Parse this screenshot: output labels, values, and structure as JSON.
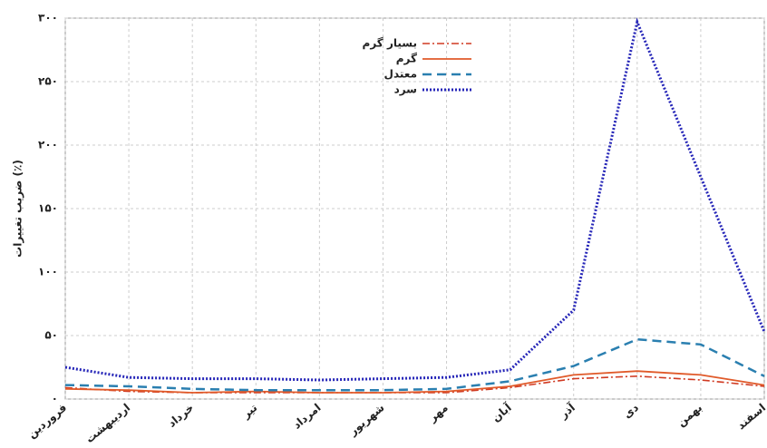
{
  "chart_data": {
    "type": "line",
    "y_label": "ضریب تغییرات (٪)",
    "categories": [
      "فروردین",
      "اردیبهشت",
      "خرداد",
      "تیر",
      "امرداد",
      "شهریور",
      "مهر",
      "آبان",
      "آذر",
      "دی",
      "بهمن",
      "اسفند"
    ],
    "series": [
      {
        "name": "بسیار گرم",
        "color": "#d03a22",
        "style": "dashdot",
        "values": [
          9,
          6,
          5,
          5,
          5,
          5,
          5,
          9,
          16,
          18,
          15,
          10
        ]
      },
      {
        "name": "گرم",
        "color": "#e05a2a",
        "style": "solid",
        "values": [
          8,
          7,
          5,
          6,
          5,
          5,
          6,
          10,
          19,
          22,
          19,
          11
        ]
      },
      {
        "name": "معتدل",
        "color": "#2a7fb0",
        "style": "dashed",
        "values": [
          11,
          10,
          8,
          7,
          7,
          7,
          8,
          14,
          26,
          47,
          43,
          18
        ]
      },
      {
        "name": "سرد",
        "color": "#2626b8",
        "style": "dotted",
        "values": [
          25,
          17,
          16,
          16,
          15,
          16,
          17,
          23,
          70,
          297,
          175,
          53
        ]
      }
    ],
    "ylim": [
      0,
      300
    ],
    "yticks": [
      {
        "value": 0,
        "label": "۰"
      },
      {
        "value": 50,
        "label": "۵۰"
      },
      {
        "value": 100,
        "label": "۱۰۰"
      },
      {
        "value": 150,
        "label": "۱۵۰"
      },
      {
        "value": 200,
        "label": "۲۰۰"
      },
      {
        "value": 250,
        "label": "۲۵۰"
      },
      {
        "value": 300,
        "label": "۳۰۰"
      }
    ],
    "grid": true
  }
}
